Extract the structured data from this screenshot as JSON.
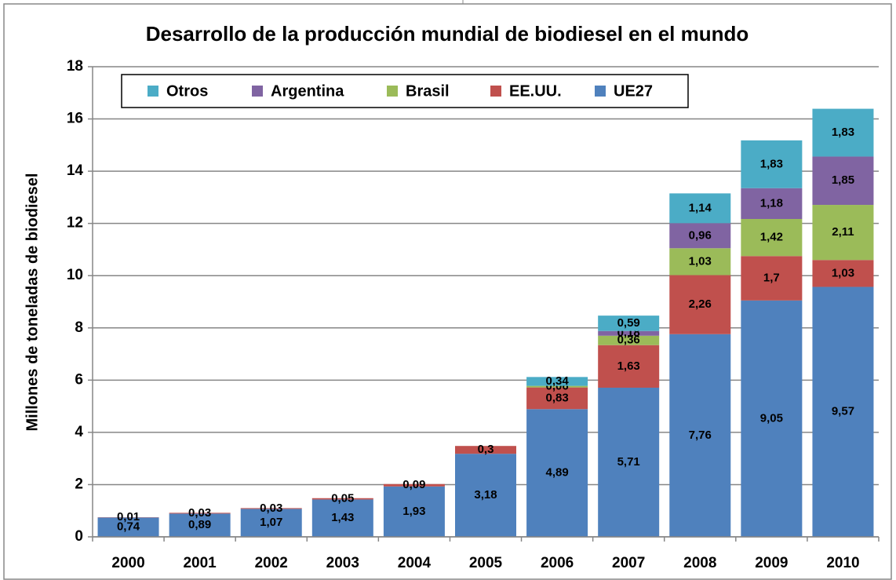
{
  "chart_data": {
    "type": "bar",
    "stacked": true,
    "title": "Desarrollo de la producción mundial de biodiesel en el mundo",
    "y_label": "Millones de toneladas de biodiesel",
    "categories": [
      "2000",
      "2001",
      "2002",
      "2003",
      "2004",
      "2005",
      "2006",
      "2007",
      "2008",
      "2009",
      "2010"
    ],
    "series": [
      {
        "name": "UE27",
        "color": "#4f81bd",
        "values": [
          0.74,
          0.89,
          1.07,
          1.43,
          1.93,
          3.18,
          4.89,
          5.71,
          7.76,
          9.05,
          9.57
        ],
        "value_labels": [
          "0,74",
          "0,89",
          "1,07",
          "1,43",
          "1,93",
          "3,18",
          "4,89",
          "5,71",
          "7,76",
          "9,05",
          "9,57"
        ]
      },
      {
        "name": "EE.UU.",
        "color": "#c0504d",
        "values": [
          0.01,
          0.03,
          0.03,
          0.05,
          0.09,
          0.3,
          0.83,
          1.63,
          2.26,
          1.7,
          1.03
        ],
        "value_labels": [
          "0,01",
          "0,03",
          "0,03",
          "0,05",
          "0,09",
          "0,3",
          "0,83",
          "1,63",
          "2,26",
          "1,7",
          "1,03"
        ]
      },
      {
        "name": "Brasil",
        "color": "#9bbb59",
        "values": [
          null,
          null,
          null,
          null,
          null,
          null,
          0.06,
          0.36,
          1.03,
          1.42,
          2.11
        ],
        "value_labels": [
          null,
          null,
          null,
          null,
          null,
          null,
          "0,06",
          "0,36",
          "1,03",
          "1,42",
          "2,11"
        ]
      },
      {
        "name": "Argentina",
        "color": "#8064a2",
        "values": [
          null,
          null,
          null,
          null,
          null,
          null,
          null,
          0.18,
          0.96,
          1.18,
          1.85
        ],
        "value_labels": [
          null,
          null,
          null,
          null,
          null,
          null,
          null,
          "0,18",
          "0,96",
          "1,18",
          "1,85"
        ]
      },
      {
        "name": "Otros",
        "color": "#4bacc6",
        "values": [
          null,
          null,
          null,
          null,
          null,
          null,
          0.34,
          0.59,
          1.14,
          1.83,
          1.83
        ],
        "value_labels": [
          null,
          null,
          null,
          null,
          null,
          null,
          "0,34",
          "0,59",
          "1,14",
          "1,83",
          "1,83"
        ]
      }
    ],
    "ylim": [
      0,
      18
    ],
    "yticks": [
      0,
      2,
      4,
      6,
      8,
      10,
      12,
      14,
      16,
      18
    ],
    "grid": true,
    "legend": "top"
  }
}
